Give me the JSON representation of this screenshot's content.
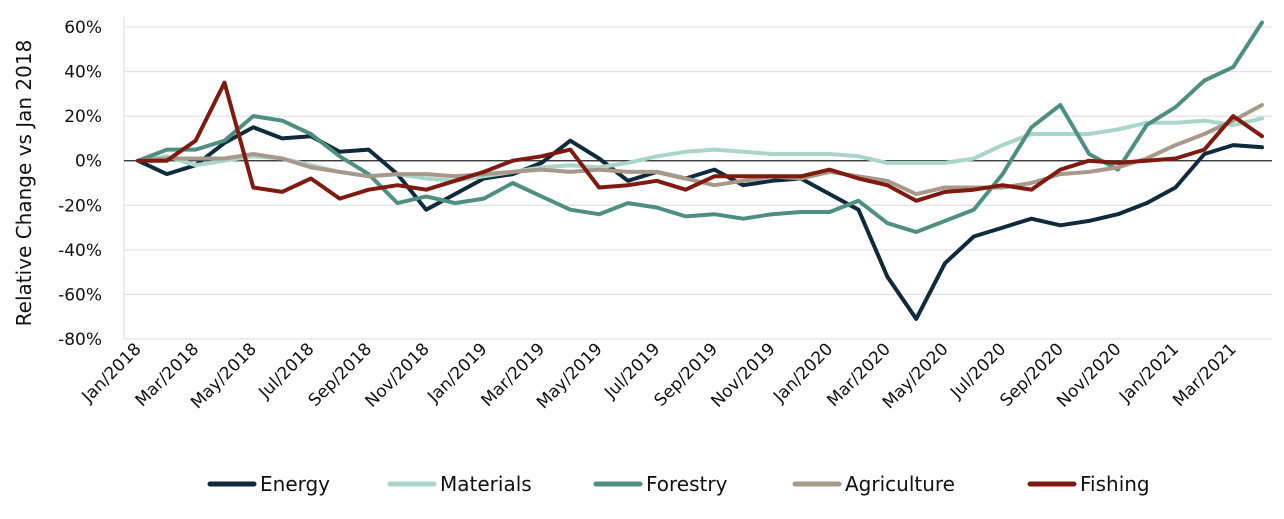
{
  "chart_data": {
    "type": "line",
    "ylabel": "Relative Change vs Jan 2018",
    "ylim": [
      -80,
      60
    ],
    "yticks": [
      -80,
      -60,
      -40,
      -20,
      0,
      20,
      40,
      60
    ],
    "ytick_labels": [
      "-80%",
      "-60%",
      "-40%",
      "-20%",
      "0%",
      "20%",
      "40%",
      "60%"
    ],
    "grid": true,
    "legend_position": "bottom",
    "x": [
      "Jan/2018",
      "Feb/2018",
      "Mar/2018",
      "Apr/2018",
      "May/2018",
      "Jun/2018",
      "Jul/2018",
      "Aug/2018",
      "Sep/2018",
      "Oct/2018",
      "Nov/2018",
      "Dec/2018",
      "Jan/2019",
      "Feb/2019",
      "Mar/2019",
      "Apr/2019",
      "May/2019",
      "Jun/2019",
      "Jul/2019",
      "Aug/2019",
      "Sep/2019",
      "Oct/2019",
      "Nov/2019",
      "Dec/2019",
      "Jan/2020",
      "Feb/2020",
      "Mar/2020",
      "Apr/2020",
      "May/2020",
      "Jun/2020",
      "Jul/2020",
      "Aug/2020",
      "Sep/2020",
      "Oct/2020",
      "Nov/2020",
      "Dec/2020",
      "Jan/2021",
      "Feb/2021",
      "Mar/2021",
      "Apr/2021"
    ],
    "xtick_labels": [
      "Jan/2018",
      "Mar/2018",
      "May/2018",
      "Jul/2018",
      "Sep/2018",
      "Nov/2018",
      "Jan/2019",
      "Mar/2019",
      "May/2019",
      "Jul/2019",
      "Sep/2019",
      "Nov/2019",
      "Jan/2020",
      "Mar/2020",
      "May/2020",
      "Jul/2020",
      "Sep/2020",
      "Nov/2020",
      "Jan/2021",
      "Mar/2021"
    ],
    "series": [
      {
        "name": "Energy",
        "color": "#0f2a3a",
        "values": [
          0,
          -6,
          -2,
          8,
          15,
          10,
          11,
          4,
          5,
          -6,
          -22,
          -15,
          -8,
          -6,
          -1,
          9,
          1,
          -9,
          -5,
          -8,
          -4,
          -11,
          -9,
          -8,
          -15,
          -22,
          -52,
          -71,
          -46,
          -34,
          -30,
          -26,
          -29,
          -27,
          -24,
          -19,
          -12,
          3,
          7,
          6
        ]
      },
      {
        "name": "Materials",
        "color": "#a9d5ca",
        "values": [
          0,
          2,
          -2,
          0,
          2,
          1,
          -2,
          -5,
          -7,
          -6,
          -8,
          -9,
          -7,
          -5,
          -3,
          -2,
          -3,
          -1,
          2,
          4,
          5,
          4,
          3,
          3,
          3,
          2,
          -1,
          -1,
          -1,
          1,
          7,
          12,
          12,
          12,
          14,
          17,
          17,
          18,
          16,
          19
        ]
      },
      {
        "name": "Forestry",
        "color": "#4f8f82",
        "values": [
          0,
          5,
          5,
          9,
          20,
          18,
          12,
          2,
          -6,
          -19,
          -16,
          -19,
          -17,
          -10,
          -16,
          -22,
          -24,
          -19,
          -21,
          -25,
          -24,
          -26,
          -24,
          -23,
          -23,
          -18,
          -28,
          -32,
          -27,
          -22,
          -6,
          15,
          25,
          3,
          -4,
          16,
          24,
          36,
          42,
          62
        ]
      },
      {
        "name": "Agriculture",
        "color": "#a89889",
        "values": [
          0,
          1,
          1,
          1,
          3,
          1,
          -3,
          -5,
          -7,
          -6,
          -6,
          -7,
          -6,
          -5,
          -4,
          -5,
          -4,
          -5,
          -5,
          -8,
          -11,
          -9,
          -7,
          -8,
          -5,
          -7,
          -9,
          -15,
          -12,
          -12,
          -12,
          -10,
          -6,
          -5,
          -3,
          1,
          7,
          12,
          18,
          25
        ]
      },
      {
        "name": "Fishing",
        "color": "#7e1a10",
        "values": [
          0,
          0,
          9,
          35,
          -12,
          -14,
          -8,
          -17,
          -13,
          -11,
          -13,
          -9,
          -5,
          0,
          2,
          5,
          -12,
          -11,
          -9,
          -13,
          -7,
          -7,
          -7,
          -7,
          -4,
          -8,
          -11,
          -18,
          -14,
          -13,
          -11,
          -13,
          -4,
          0,
          -1,
          0,
          1,
          5,
          20,
          11
        ]
      }
    ]
  }
}
